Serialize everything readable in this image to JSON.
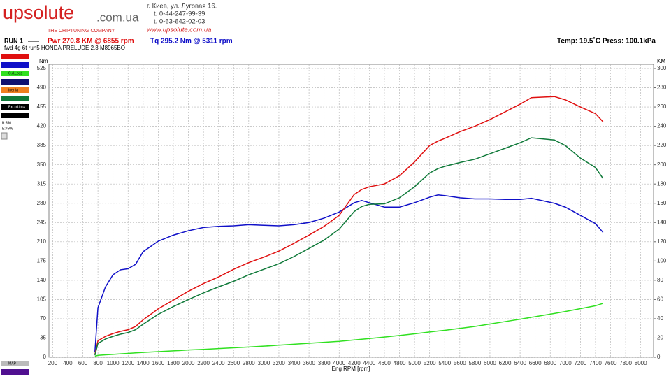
{
  "header": {
    "logo_main": "upsolute",
    "logo_domain": ".com.ua",
    "tagline": "THE CHIPTUNING COMPANY",
    "address": [
      "г. Киев, ул. Луговая 16.",
      "t. 0-44-247-99-39",
      "t. 0-63-642-02-03"
    ],
    "website": "www.upsolute.com.ua",
    "run": "RUN 1",
    "power_peak": "Pwr  270.8 KM @ 6855 rpm",
    "torque_peak": "Tq 295.2 Nm @ 5311 rpm",
    "conditions": "Temp: 19.5˚C    Press: 100.1kPa",
    "description": "fwd 4g 6t run5 HONDA PRELUDE 2.3 M8965BO"
  },
  "sidebar": {
    "labels": [
      "C.d.Loss",
      "Inertia",
      "Ext.cd.loss"
    ],
    "begin": "B:550",
    "end": "E:7506",
    "map": "MAP"
  },
  "chart_data": {
    "type": "line",
    "x": [
      760,
      800,
      900,
      1000,
      1100,
      1200,
      1300,
      1400,
      1600,
      1800,
      2000,
      2200,
      2400,
      2600,
      2800,
      3000,
      3200,
      3400,
      3600,
      3800,
      4000,
      4200,
      4300,
      4400,
      4600,
      4800,
      5000,
      5200,
      5311,
      5400,
      5600,
      5800,
      6000,
      6200,
      6400,
      6550,
      6855,
      7000,
      7200,
      7400,
      7500
    ],
    "series": [
      {
        "color": "#1010c8",
        "axis": "y",
        "values": [
          10,
          90,
          128,
          150,
          159,
          161,
          169,
          192,
          211,
          222,
          230,
          236,
          238,
          239,
          241,
          240,
          239,
          241,
          245,
          253,
          264,
          281,
          285,
          281,
          273,
          273,
          281,
          291,
          295.2,
          294,
          290,
          288,
          288,
          287,
          287,
          289,
          280,
          273,
          258,
          243,
          227
        ]
      },
      {
        "color": "#e01010",
        "axis": "y2",
        "values": [
          3,
          17.1,
          21.7,
          24.6,
          26.9,
          28.6,
          32,
          38.9,
          50.3,
          59.4,
          68.6,
          76.6,
          83.4,
          91.4,
          98.3,
          104,
          110.3,
          118.3,
          126.9,
          136,
          147.4,
          169.1,
          174.3,
          177.1,
          180,
          188.6,
          202.9,
          220,
          224.6,
          227.4,
          234.3,
          240,
          246.9,
          254.9,
          262.9,
          269.7,
          270.8,
          267.4,
          260,
          253.1,
          244.6
        ]
      },
      {
        "color": "#107a3a",
        "axis": "y2",
        "values": [
          2,
          14.3,
          18.9,
          21.7,
          24,
          25.7,
          28.6,
          34.3,
          44.6,
          52.6,
          60,
          66.9,
          73.1,
          78.9,
          85.7,
          91.4,
          97.1,
          104.6,
          113.1,
          121.7,
          133.1,
          151.4,
          156.6,
          158.9,
          159.4,
          165.7,
          177.1,
          191.4,
          196,
          198.3,
          202.3,
          205.7,
          211.4,
          217.1,
          222.9,
          228,
          225.7,
          220,
          206.9,
          197.1,
          185.7
        ]
      },
      {
        "color": "#30e020",
        "axis": "y2",
        "values": [
          1,
          2,
          2.5,
          3,
          3.5,
          4,
          4.5,
          5,
          5.8,
          6.6,
          7.5,
          8.2,
          9,
          9.8,
          10.6,
          11.5,
          12.5,
          13.5,
          14.5,
          15.5,
          16.5,
          18,
          18.7,
          19.4,
          21,
          22.6,
          24.3,
          26.2,
          27.2,
          28,
          30,
          32,
          34.5,
          37,
          39.5,
          41.5,
          45.5,
          47.5,
          50.5,
          53.5,
          56
        ]
      }
    ],
    "x_label": "Eng RPM [rpm]",
    "y_label": "Nm",
    "y2_label": "KM",
    "xlim": [
      150,
      8170
    ],
    "xticks": [
      200,
      400,
      600,
      800,
      1000,
      1200,
      1400,
      1600,
      1800,
      2000,
      2200,
      2400,
      2600,
      2800,
      3000,
      3200,
      3400,
      3600,
      3800,
      4000,
      4200,
      4400,
      4600,
      4800,
      5000,
      5200,
      5400,
      5600,
      5800,
      6000,
      6200,
      6400,
      6600,
      6800,
      7000,
      7200,
      7400,
      7600,
      7800,
      8000
    ],
    "ylim": [
      0,
      525
    ],
    "yticks": [
      0,
      35,
      70,
      105,
      140,
      175,
      210,
      245,
      280,
      315,
      350,
      385,
      420,
      455,
      490,
      525
    ],
    "y2lim": [
      0,
      300
    ],
    "y2ticks": [
      0,
      20,
      40,
      60,
      80,
      100,
      120,
      140,
      160,
      180,
      200,
      220,
      240,
      260,
      280,
      300
    ],
    "grid": true
  }
}
